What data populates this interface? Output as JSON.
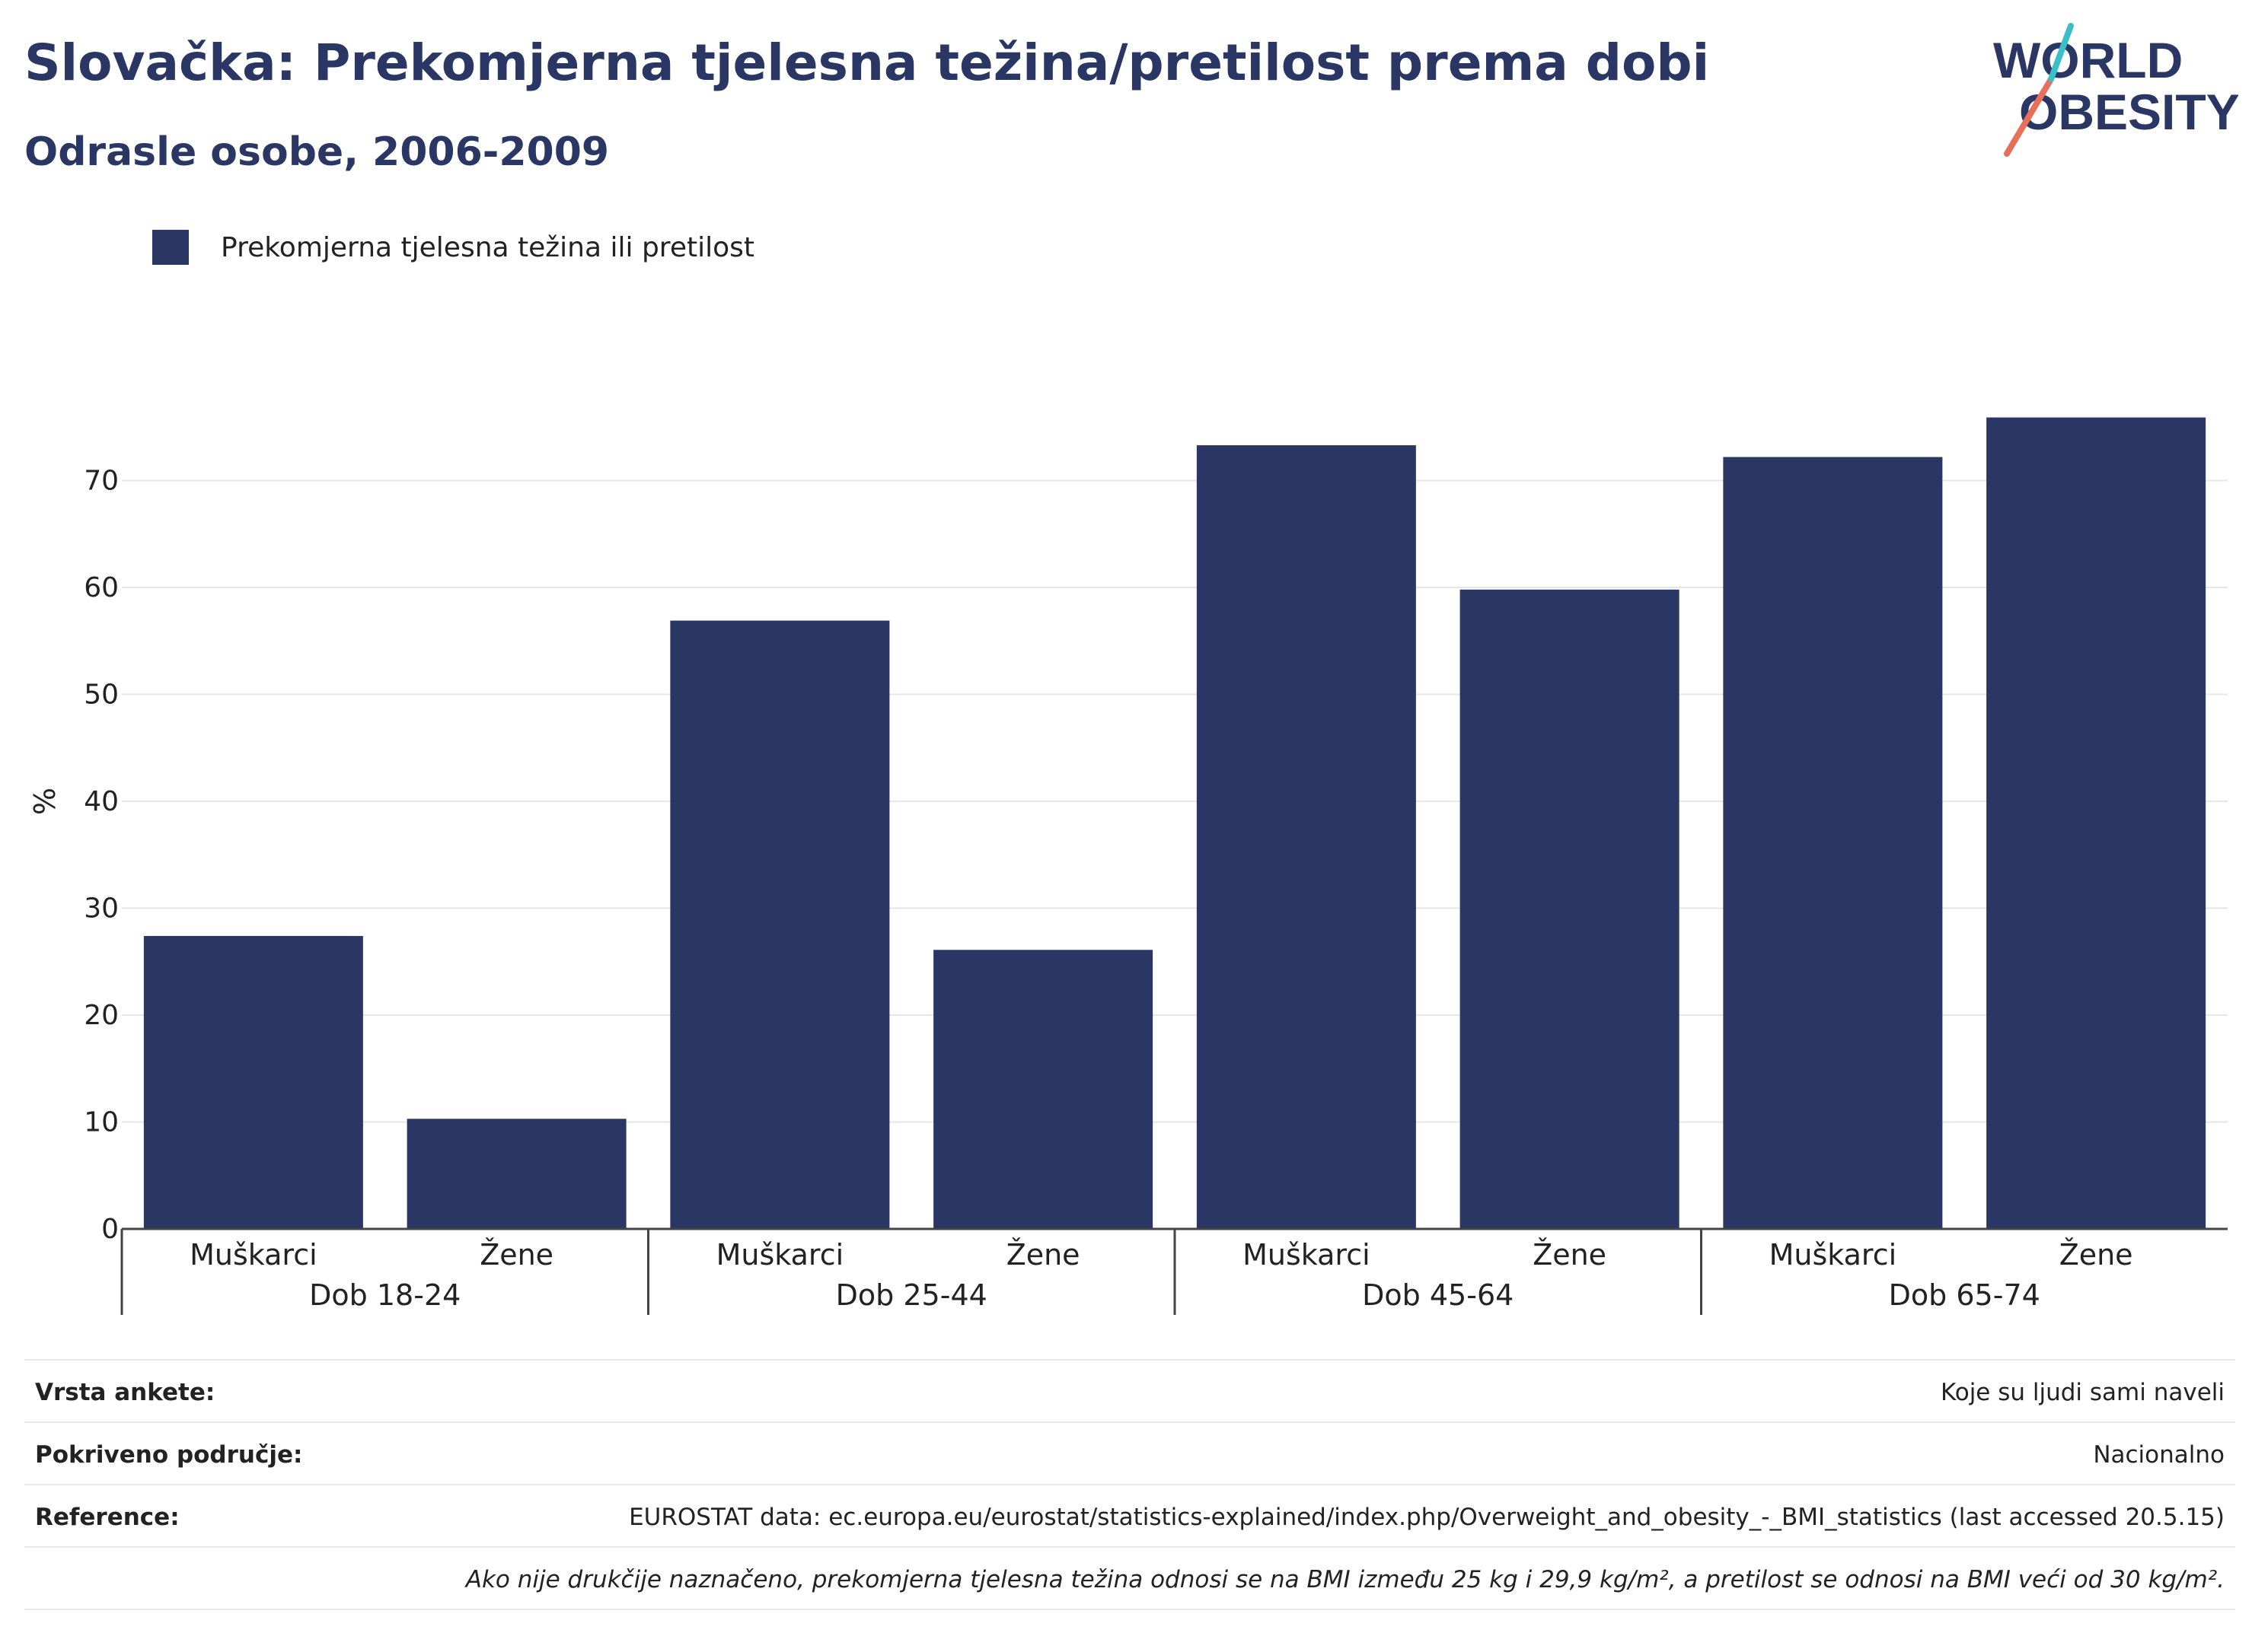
{
  "header": {
    "title": "Slovačka: Prekomjerna tjelesna težina/pretilost prema dobi",
    "subtitle": "Odrasle osobe, 2006-2009"
  },
  "logo": {
    "line1": "WORLD",
    "line2": "OBESITY",
    "accent_colors": [
      "#e8705a",
      "#3bbfc7"
    ]
  },
  "legend": {
    "items": [
      {
        "label": "Prekomjerna tjelesna težina ili pretilost",
        "color": "#2a3663"
      }
    ]
  },
  "chart_data": {
    "type": "bar",
    "ylabel": "%",
    "ylim": [
      0,
      80
    ],
    "yticks": [
      0,
      10,
      20,
      30,
      40,
      50,
      60,
      70
    ],
    "grid": true,
    "legend_position": "top-left",
    "bar_color": "#2a3663",
    "groups": [
      {
        "label": "Dob 18-24",
        "bars": [
          {
            "category": "Muškarci",
            "value": 27.4
          },
          {
            "category": "Žene",
            "value": 10.3
          }
        ]
      },
      {
        "label": "Dob 25-44",
        "bars": [
          {
            "category": "Muškarci",
            "value": 56.9
          },
          {
            "category": "Žene",
            "value": 26.1
          }
        ]
      },
      {
        "label": "Dob 45-64",
        "bars": [
          {
            "category": "Muškarci",
            "value": 73.3
          },
          {
            "category": "Žene",
            "value": 59.8
          }
        ]
      },
      {
        "label": "Dob 65-74",
        "bars": [
          {
            "category": "Muškarci",
            "value": 72.2
          },
          {
            "category": "Žene",
            "value": 75.9
          }
        ]
      }
    ]
  },
  "info": {
    "rows": [
      {
        "key": "Vrsta ankete:",
        "value": "Koje su ljudi sami naveli"
      },
      {
        "key": "Pokriveno područje:",
        "value": "Nacionalno"
      },
      {
        "key": "Reference:",
        "value": "EUROSTAT data: ec.europa.eu/eurostat/statistics-explained/index.php/Overweight_and_obesity_-_BMI_statistics (last accessed 20.5.15)"
      }
    ],
    "note": "Ako nije drukčije naznačeno, prekomjerna tjelesna težina odnosi se na BMI između 25 kg i 29,9 kg/m², a pretilost se odnosi na BMI veći od 30 kg/m²."
  }
}
